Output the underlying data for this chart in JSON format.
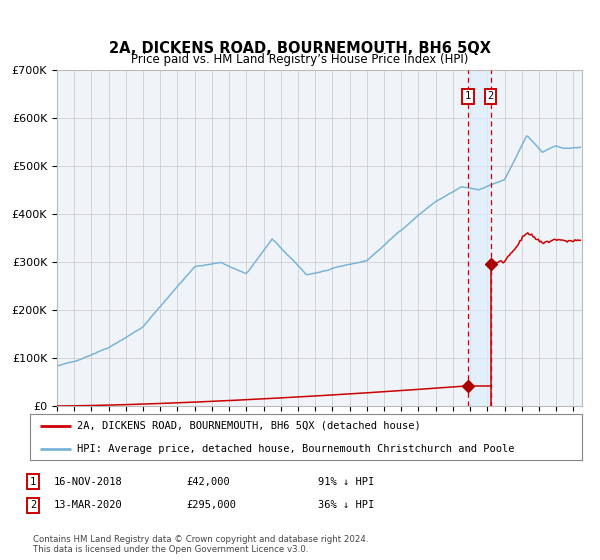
{
  "title": "2A, DICKENS ROAD, BOURNEMOUTH, BH6 5QX",
  "subtitle": "Price paid vs. HM Land Registry’s House Price Index (HPI)",
  "hpi_color": "#7ab4d8",
  "price_color": "#cc0000",
  "marker_color": "#aa0000",
  "vline_color": "#cc0000",
  "shade_color": "#ddeeff",
  "bg_color": "#f0f4f8",
  "legend_entry1": "2A, DICKENS ROAD, BOURNEMOUTH, BH6 5QX (detached house)",
  "legend_entry2": "HPI: Average price, detached house, Bournemouth Christchurch and Poole",
  "footnote": "Contains HM Land Registry data © Crown copyright and database right 2024.\nThis data is licensed under the Open Government Licence v3.0.",
  "sale1_date": 2018.88,
  "sale1_price": 42000,
  "sale2_date": 2020.19,
  "sale2_price": 295000,
  "xmin": 1995,
  "xmax": 2025.5,
  "ymin": 0,
  "ymax": 700000
}
